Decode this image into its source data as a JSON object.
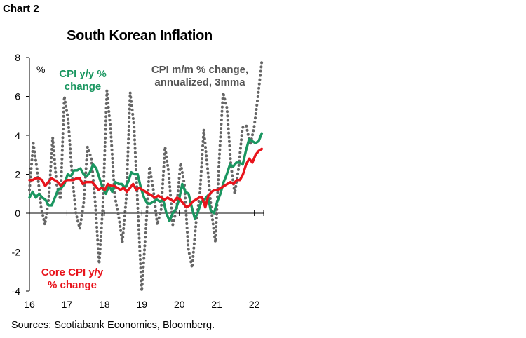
{
  "header": {
    "chart_label": "Chart 2"
  },
  "footer": {
    "source": "Sources: Scotiabank Economics, Bloomberg."
  },
  "chart_data": {
    "type": "line",
    "title": "South Korean Inflation",
    "ylabel": "%",
    "ylim": [
      -4,
      8
    ],
    "yticks": [
      "-4",
      "-2",
      "0",
      "2",
      "4",
      "6",
      "8"
    ],
    "xtick_labels": [
      "16",
      "17",
      "18",
      "19",
      "20",
      "21",
      "22"
    ],
    "xlim": [
      2016.0,
      2022.25
    ],
    "grid": false,
    "legend": "inline annotations",
    "colors": {
      "cpi_yy": "#1a9660",
      "core_yy": "#e8141c",
      "cpi_mm": "#666666"
    },
    "series": [
      {
        "name": "CPI m/m % change, annualized, 3mma",
        "label_lines": [
          "CPI m/m % change,",
          "annualized, 3mma"
        ],
        "style": "dotted",
        "values": [
          1.2,
          3.6,
          2.2,
          0.3,
          -0.6,
          0.8,
          3.9,
          1.5,
          0.7,
          6.0,
          4.8,
          2.0,
          0.0,
          -0.8,
          0.5,
          3.4,
          2.8,
          0.5,
          -2.6,
          0.5,
          6.3,
          4.2,
          0.9,
          -0.1,
          -1.5,
          0.8,
          6.2,
          4.5,
          0.2,
          -4.0,
          -1.0,
          2.4,
          1.2,
          -0.6,
          0.2,
          3.4,
          2.0,
          -0.6,
          0.2,
          2.6,
          1.5,
          -1.8,
          -2.8,
          -0.5,
          1.0,
          4.3,
          2.3,
          0.1,
          -1.5,
          2.8,
          6.2,
          5.4,
          2.5,
          1.0,
          2.3,
          4.4,
          4.5,
          3.5,
          4.4,
          6.0,
          7.8
        ]
      },
      {
        "name": "CPI y/y % change",
        "label_lines": [
          "CPI y/y %",
          "change"
        ],
        "style": "solid",
        "values": [
          0.8,
          1.1,
          0.8,
          1.0,
          0.8,
          0.7,
          0.4,
          0.4,
          0.8,
          1.2,
          1.3,
          1.5,
          2.0,
          1.9,
          2.2,
          2.2,
          2.3,
          2.0,
          1.9,
          2.1,
          2.5,
          2.3,
          1.8,
          1.3,
          1.0,
          1.4,
          1.1,
          1.6,
          1.5,
          1.5,
          1.3,
          1.6,
          2.1,
          2.0,
          2.0,
          1.3,
          0.8,
          0.5,
          0.5,
          0.6,
          0.7,
          0.6,
          0.7,
          0.0,
          -0.4,
          0.0,
          0.2,
          0.7,
          1.5,
          1.1,
          1.0,
          0.3,
          -0.3,
          0.1,
          0.6,
          0.7,
          0.9,
          0.1,
          0.0,
          0.6,
          1.0,
          1.6,
          2.0,
          2.5,
          2.4,
          2.6,
          2.6,
          2.5,
          3.2,
          3.8,
          3.7,
          3.6,
          3.7,
          4.1
        ]
      },
      {
        "name": "Core CPI y/y % change",
        "label_lines": [
          "Core CPI y/y",
          "% change"
        ],
        "style": "solid",
        "values": [
          1.7,
          1.7,
          1.8,
          1.8,
          1.7,
          1.4,
          1.6,
          1.8,
          1.7,
          1.6,
          1.4,
          1.6,
          1.7,
          1.7,
          1.7,
          1.8,
          1.8,
          1.5,
          1.6,
          1.6,
          1.6,
          1.4,
          1.2,
          1.3,
          1.2,
          1.5,
          1.4,
          1.4,
          1.3,
          1.2,
          1.3,
          1.1,
          1.3,
          1.5,
          1.2,
          1.3,
          1.2,
          1.1,
          1.0,
          0.9,
          0.8,
          0.9,
          0.8,
          0.7,
          0.8,
          0.7,
          0.6,
          0.8,
          0.7,
          0.5,
          0.3,
          0.4,
          0.6,
          0.7,
          0.8,
          0.8,
          0.3,
          0.9,
          1.1,
          1.2,
          1.2,
          1.3,
          1.4,
          1.5,
          1.6,
          1.5,
          1.7,
          1.7,
          2.0,
          2.5,
          2.8,
          2.6,
          3.0,
          3.2,
          3.3
        ]
      }
    ]
  }
}
